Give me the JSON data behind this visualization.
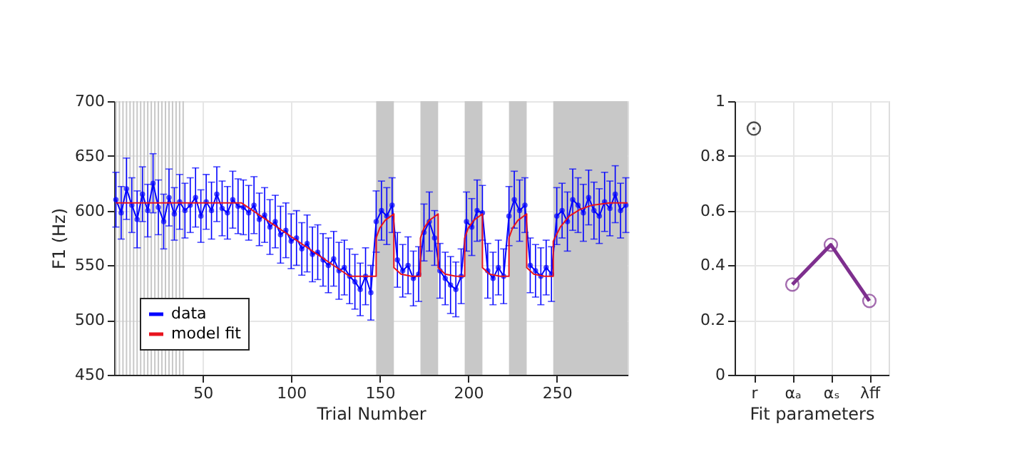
{
  "chart_data": [
    {
      "type": "line",
      "xlabel": "Trial Number",
      "ylabel": "F1 (Hz)",
      "xlim": [
        0,
        290
      ],
      "xticks": [
        50,
        100,
        150,
        200,
        250
      ],
      "ylim": [
        450,
        700
      ],
      "yticks": [
        450,
        500,
        550,
        600,
        650,
        700
      ],
      "grid": true,
      "legend": "bottom left",
      "series": [
        {
          "name": "data",
          "color": "#0000ff",
          "marker": "circle",
          "x": [
            1,
            4,
            7,
            10,
            13,
            16,
            19,
            22,
            25,
            28,
            31,
            34,
            37,
            40,
            43,
            46,
            49,
            52,
            55,
            58,
            61,
            64,
            67,
            70,
            73,
            76,
            79,
            82,
            85,
            88,
            91,
            94,
            97,
            100,
            103,
            106,
            109,
            112,
            115,
            118,
            121,
            124,
            127,
            130,
            133,
            136,
            139,
            142,
            145,
            148,
            151,
            154,
            157,
            160,
            163,
            166,
            169,
            172,
            175,
            178,
            181,
            184,
            187,
            190,
            193,
            196,
            199,
            202,
            205,
            208,
            211,
            214,
            217,
            220,
            223,
            226,
            229,
            232,
            235,
            238,
            241,
            244,
            247,
            250,
            253,
            256,
            259,
            262,
            265,
            268,
            271,
            274,
            277,
            280,
            283,
            286,
            289
          ],
          "values": [
            610,
            598,
            620,
            605,
            592,
            615,
            600,
            625,
            603,
            590,
            612,
            597,
            608,
            600,
            605,
            612,
            595,
            608,
            600,
            615,
            602,
            598,
            610,
            604,
            603,
            598,
            605,
            592,
            596,
            585,
            590,
            578,
            582,
            572,
            575,
            565,
            570,
            560,
            562,
            555,
            550,
            556,
            545,
            548,
            540,
            535,
            528,
            540,
            525,
            590,
            600,
            595,
            605,
            555,
            545,
            550,
            538,
            542,
            580,
            590,
            575,
            545,
            538,
            532,
            528,
            540,
            590,
            585,
            600,
            598,
            545,
            538,
            548,
            540,
            595,
            610,
            600,
            605,
            550,
            545,
            540,
            548,
            542,
            595,
            600,
            590,
            610,
            605,
            598,
            612,
            600,
            595,
            608,
            602,
            615,
            600,
            605
          ],
          "errors": [
            25,
            24,
            28,
            25,
            26,
            25,
            24,
            27,
            25,
            25,
            26,
            24,
            25,
            25,
            25,
            27,
            24,
            25,
            26,
            25,
            25,
            24,
            26,
            25,
            25,
            25,
            26,
            24,
            25,
            25,
            24,
            26,
            25,
            25,
            25,
            24,
            26,
            25,
            25,
            24,
            25,
            25,
            26,
            25,
            25,
            25,
            24,
            26,
            25,
            28,
            27,
            26,
            25,
            25,
            24,
            26,
            25,
            25,
            26,
            27,
            25,
            25,
            24,
            26,
            25,
            25,
            27,
            26,
            28,
            25,
            25,
            24,
            25,
            25,
            27,
            26,
            28,
            25,
            25,
            24,
            26,
            25,
            25,
            26,
            25,
            27,
            28,
            25,
            26,
            25,
            26,
            25,
            27,
            25,
            26,
            25,
            25
          ]
        },
        {
          "name": "model fit",
          "color": "#e8141e",
          "marker": "none",
          "x": [
            1,
            72,
            133,
            148,
            148,
            150,
            153,
            158,
            158,
            162,
            168,
            173,
            173,
            175,
            178,
            183,
            183,
            187,
            193,
            198,
            198,
            200,
            203,
            208,
            208,
            212,
            218,
            223,
            223,
            225,
            228,
            233,
            233,
            237,
            243,
            248,
            248,
            252,
            257,
            263,
            270,
            280,
            290
          ],
          "values": [
            607,
            607,
            540,
            540,
            575,
            584,
            591,
            597,
            548,
            542,
            540,
            540,
            575,
            584,
            591,
            597,
            548,
            542,
            540,
            540,
            575,
            584,
            591,
            597,
            548,
            542,
            540,
            540,
            575,
            584,
            591,
            597,
            548,
            542,
            540,
            540,
            572,
            585,
            595,
            601,
            605,
            607,
            607
          ]
        }
      ],
      "bands": [
        {
          "axis": "x",
          "from": 148,
          "to": 158,
          "color": "#c8c8c8"
        },
        {
          "axis": "x",
          "from": 173,
          "to": 183,
          "color": "#c8c8c8"
        },
        {
          "axis": "x",
          "from": 198,
          "to": 208,
          "color": "#c8c8c8"
        },
        {
          "axis": "x",
          "from": 223,
          "to": 233,
          "color": "#c8c8c8"
        },
        {
          "axis": "x",
          "from": 248,
          "to": 290,
          "color": "#c8c8c8"
        }
      ],
      "ref_lines": [
        {
          "axis": "x",
          "value": 1,
          "color": "#c8c8c8"
        },
        {
          "axis": "x",
          "value": 3,
          "color": "#c8c8c8"
        },
        {
          "axis": "x",
          "value": 5,
          "color": "#c8c8c8"
        },
        {
          "axis": "x",
          "value": 7,
          "color": "#c8c8c8"
        },
        {
          "axis": "x",
          "value": 9,
          "color": "#c8c8c8"
        },
        {
          "axis": "x",
          "value": 11,
          "color": "#c8c8c8"
        },
        {
          "axis": "x",
          "value": 13,
          "color": "#c8c8c8"
        },
        {
          "axis": "x",
          "value": 15,
          "color": "#c8c8c8"
        },
        {
          "axis": "x",
          "value": 17,
          "color": "#c8c8c8"
        },
        {
          "axis": "x",
          "value": 19,
          "color": "#c8c8c8"
        },
        {
          "axis": "x",
          "value": 21,
          "color": "#c8c8c8"
        },
        {
          "axis": "x",
          "value": 23,
          "color": "#c8c8c8"
        },
        {
          "axis": "x",
          "value": 25,
          "color": "#c8c8c8"
        },
        {
          "axis": "x",
          "value": 27,
          "color": "#c8c8c8"
        },
        {
          "axis": "x",
          "value": 29,
          "color": "#c8c8c8"
        },
        {
          "axis": "x",
          "value": 31,
          "color": "#c8c8c8"
        },
        {
          "axis": "x",
          "value": 33,
          "color": "#c8c8c8"
        },
        {
          "axis": "x",
          "value": 35,
          "color": "#c8c8c8"
        },
        {
          "axis": "x",
          "value": 37,
          "color": "#c8c8c8"
        },
        {
          "axis": "x",
          "value": 39,
          "color": "#c8c8c8"
        }
      ]
    },
    {
      "type": "scatter",
      "xlabel": "Fit parameters",
      "categories": [
        "r",
        "αₐ",
        "αₛ",
        "λff"
      ],
      "ylim": [
        0,
        1
      ],
      "yticks": [
        0,
        0.2,
        0.4,
        0.6,
        0.8,
        1
      ],
      "grid": true,
      "series": [
        {
          "color": "#000000",
          "marker": "circle",
          "values": [
            0.9,
            null,
            null,
            null
          ]
        },
        {
          "type": "line",
          "color": "#7e2f8e",
          "marker": "circle",
          "values": [
            null,
            0.33,
            0.475,
            0.27
          ]
        }
      ]
    }
  ]
}
